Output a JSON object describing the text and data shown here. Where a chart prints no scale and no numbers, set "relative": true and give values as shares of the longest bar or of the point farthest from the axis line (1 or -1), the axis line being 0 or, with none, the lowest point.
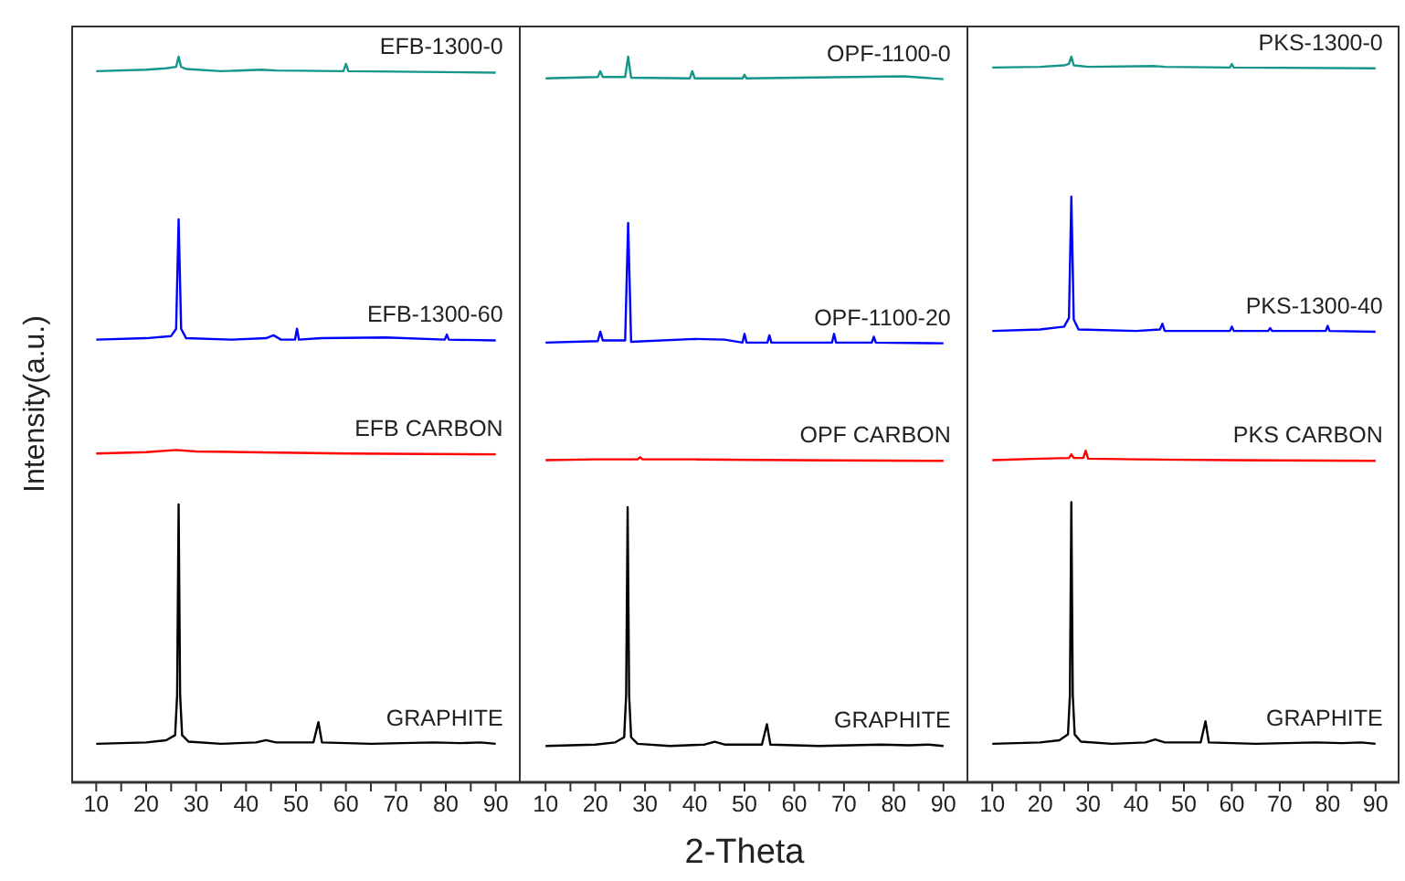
{
  "chart_data": [
    {
      "type": "line",
      "relative": true,
      "ylabel": "Intensity(a.u.)",
      "xlim": [
        5,
        95
      ],
      "xticks": [
        10,
        {
          "value": 15,
          "label": null
        },
        20,
        {
          "value": 25,
          "label": null
        },
        30,
        {
          "value": 35,
          "label": null
        },
        40,
        {
          "value": 45,
          "label": null
        },
        50,
        {
          "value": 55,
          "label": null
        },
        60,
        {
          "value": 65,
          "label": null
        },
        70,
        {
          "value": 75,
          "label": null
        },
        80,
        {
          "value": 85,
          "label": null
        },
        90
      ],
      "marker": "none",
      "line_style": "solid",
      "series": [
        {
          "name": "EFB-1300-0",
          "color": "#14968a",
          "x": [
            10,
            20,
            24,
            26,
            26.5,
            27,
            28,
            35,
            43,
            46,
            59.5,
            60,
            60.5,
            90
          ],
          "values": [
            0.98,
            0.982,
            0.984,
            0.986,
            1.0,
            0.986,
            0.983,
            0.98,
            0.982,
            0.981,
            0.98,
            0.99,
            0.98,
            0.978
          ]
        },
        {
          "name": "EFB-1300-60",
          "color": "#0000ff",
          "x": [
            10,
            20,
            25,
            26,
            26.5,
            27,
            28,
            37,
            44,
            45.5,
            47,
            49.8,
            50.2,
            50.6,
            55,
            68,
            79.8,
            80.2,
            80.6,
            90
          ],
          "values": [
            0.61,
            0.612,
            0.615,
            0.625,
            0.776,
            0.625,
            0.612,
            0.61,
            0.612,
            0.616,
            0.61,
            0.61,
            0.625,
            0.61,
            0.612,
            0.613,
            0.61,
            0.617,
            0.61,
            0.609
          ]
        },
        {
          "name": "EFB CARBON",
          "color": "#ff0000",
          "x": [
            10,
            20,
            26,
            30,
            40,
            60,
            90
          ],
          "values": [
            0.453,
            0.455,
            0.458,
            0.456,
            0.455,
            0.453,
            0.452
          ]
        },
        {
          "name": "GRAPHITE",
          "color": "#000000",
          "x": [
            10,
            20,
            24,
            25.8,
            26.2,
            26.5,
            26.8,
            27.2,
            28.5,
            35,
            42,
            44,
            46,
            53.5,
            54.5,
            55.2,
            65,
            77.5,
            83,
            87,
            90
          ],
          "values": [
            0.053,
            0.055,
            0.058,
            0.065,
            0.12,
            0.383,
            0.12,
            0.065,
            0.056,
            0.053,
            0.055,
            0.058,
            0.055,
            0.055,
            0.083,
            0.055,
            0.053,
            0.055,
            0.054,
            0.055,
            0.053
          ]
        }
      ]
    },
    {
      "type": "line",
      "relative": true,
      "xlabel": "2-Theta",
      "xlim": [
        5,
        95
      ],
      "xticks": [
        10,
        {
          "value": 15,
          "label": null
        },
        20,
        {
          "value": 25,
          "label": null
        },
        30,
        {
          "value": 35,
          "label": null
        },
        40,
        {
          "value": 45,
          "label": null
        },
        50,
        {
          "value": 55,
          "label": null
        },
        60,
        {
          "value": 65,
          "label": null
        },
        70,
        {
          "value": 75,
          "label": null
        },
        80,
        {
          "value": 85,
          "label": null
        },
        90
      ],
      "marker": "none",
      "line_style": "solid",
      "series": [
        {
          "name": "OPF-1100-0",
          "color": "#14968a",
          "x": [
            10,
            20.5,
            21,
            21.5,
            26,
            26.6,
            27.2,
            39,
            39.5,
            40,
            49.6,
            50,
            50.4,
            82,
            90
          ],
          "values": [
            0.97,
            0.972,
            0.98,
            0.972,
            0.972,
            1.0,
            0.971,
            0.97,
            0.98,
            0.97,
            0.97,
            0.975,
            0.97,
            0.973,
            0.969
          ]
        },
        {
          "name": "OPF-1100-20",
          "color": "#0000ff",
          "x": [
            10,
            20.5,
            21,
            21.5,
            26,
            26.6,
            27.2,
            40,
            46,
            49.6,
            50,
            50.4,
            54.6,
            55,
            55.4,
            67.6,
            68,
            68.4,
            75.6,
            76,
            76.4,
            90
          ],
          "values": [
            0.606,
            0.608,
            0.621,
            0.609,
            0.609,
            0.771,
            0.607,
            0.611,
            0.61,
            0.606,
            0.618,
            0.606,
            0.606,
            0.616,
            0.606,
            0.606,
            0.618,
            0.606,
            0.606,
            0.614,
            0.606,
            0.605
          ]
        },
        {
          "name": "OPF CARBON",
          "color": "#ff0000",
          "x": [
            10,
            20,
            28.5,
            29,
            29.5,
            40,
            60,
            90
          ],
          "values": [
            0.444,
            0.445,
            0.445,
            0.448,
            0.445,
            0.445,
            0.444,
            0.443
          ]
        },
        {
          "name": "GRAPHITE",
          "color": "#000000",
          "x": [
            10,
            20,
            24,
            25.8,
            26.2,
            26.5,
            26.8,
            27.2,
            28.5,
            35,
            42,
            44,
            46,
            53.5,
            54.5,
            55.2,
            65,
            77.5,
            83,
            87,
            90
          ],
          "values": [
            0.05,
            0.052,
            0.055,
            0.062,
            0.12,
            0.379,
            0.12,
            0.062,
            0.053,
            0.05,
            0.052,
            0.056,
            0.052,
            0.052,
            0.08,
            0.052,
            0.05,
            0.052,
            0.051,
            0.052,
            0.05
          ]
        }
      ]
    },
    {
      "type": "line",
      "relative": true,
      "xlim": [
        5,
        95
      ],
      "xticks": [
        10,
        {
          "value": 15,
          "label": null
        },
        20,
        {
          "value": 25,
          "label": null
        },
        30,
        {
          "value": 35,
          "label": null
        },
        40,
        {
          "value": 45,
          "label": null
        },
        50,
        {
          "value": 55,
          "label": null
        },
        60,
        {
          "value": 65,
          "label": null
        },
        70,
        {
          "value": 75,
          "label": null
        },
        80,
        {
          "value": 85,
          "label": null
        },
        90
      ],
      "marker": "none",
      "line_style": "solid",
      "series": [
        {
          "name": "PKS-1300-0",
          "color": "#14968a",
          "x": [
            10,
            20,
            25,
            26,
            26.5,
            27,
            30,
            44,
            46,
            59.6,
            60,
            60.4,
            90
          ],
          "values": [
            0.985,
            0.986,
            0.988,
            0.99,
            1.0,
            0.988,
            0.986,
            0.987,
            0.986,
            0.985,
            0.99,
            0.985,
            0.984
          ]
        },
        {
          "name": "PKS-1300-40",
          "color": "#0000ff",
          "x": [
            10,
            20,
            25,
            26,
            26.5,
            27,
            28,
            40,
            45,
            45.5,
            46,
            59.6,
            60,
            60.4,
            67.6,
            68,
            68.4,
            79.6,
            80,
            80.4,
            90
          ],
          "values": [
            0.622,
            0.624,
            0.628,
            0.64,
            0.807,
            0.638,
            0.624,
            0.622,
            0.624,
            0.632,
            0.622,
            0.622,
            0.628,
            0.622,
            0.622,
            0.626,
            0.622,
            0.622,
            0.629,
            0.622,
            0.621
          ]
        },
        {
          "name": "PKS CARBON",
          "color": "#ff0000",
          "x": [
            10,
            20,
            26,
            26.5,
            27,
            29,
            29.5,
            30,
            40,
            60,
            90
          ],
          "values": [
            0.444,
            0.446,
            0.447,
            0.452,
            0.447,
            0.447,
            0.457,
            0.446,
            0.445,
            0.444,
            0.443
          ]
        },
        {
          "name": "GRAPHITE",
          "color": "#000000",
          "x": [
            10,
            20,
            24,
            25.8,
            26.2,
            26.5,
            26.8,
            27.2,
            28.5,
            35,
            42,
            44,
            46,
            53.5,
            54.5,
            55.2,
            65,
            77.5,
            83,
            87,
            90
          ],
          "values": [
            0.053,
            0.055,
            0.058,
            0.066,
            0.12,
            0.386,
            0.12,
            0.066,
            0.056,
            0.053,
            0.055,
            0.059,
            0.055,
            0.055,
            0.084,
            0.055,
            0.053,
            0.055,
            0.054,
            0.055,
            0.053
          ]
        }
      ]
    }
  ]
}
